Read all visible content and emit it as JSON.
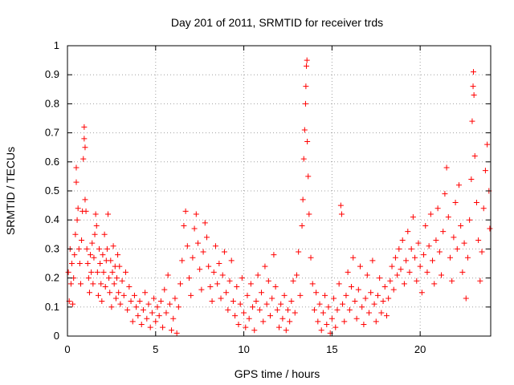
{
  "chart_data": {
    "type": "scatter",
    "title": "Day 201 of 2011, SRMTID for receiver trds",
    "xlabel": "GPS time / hours",
    "ylabel": "SRMTID / TECUs",
    "xlim": [
      0,
      24
    ],
    "ylim": [
      0,
      1
    ],
    "xticks": [
      0,
      5,
      10,
      15,
      20
    ],
    "xtick_labels": [
      "0",
      "5",
      "10",
      "15",
      "20"
    ],
    "yticks": [
      0,
      0.1,
      0.2,
      0.3,
      0.4,
      0.5,
      0.6,
      0.7,
      0.8,
      0.9,
      1
    ],
    "ytick_labels": [
      "0",
      "0.1",
      "0.2",
      "0.3",
      "0.4",
      "0.5",
      "0.6",
      "0.7",
      "0.8",
      "0.9",
      "1"
    ],
    "grid": true,
    "marker": "+",
    "color": "#ff0000",
    "series": [
      {
        "name": "SRMTID",
        "points": [
          [
            0.05,
            0.22
          ],
          [
            0.1,
            0.12
          ],
          [
            0.15,
            0.3
          ],
          [
            0.2,
            0.18
          ],
          [
            0.25,
            0.25
          ],
          [
            0.3,
            0.11
          ],
          [
            0.35,
            0.2
          ],
          [
            0.4,
            0.28
          ],
          [
            0.45,
            0.35
          ],
          [
            0.5,
            0.58
          ],
          [
            0.5,
            0.53
          ],
          [
            0.55,
            0.4
          ],
          [
            0.6,
            0.44
          ],
          [
            0.65,
            0.3
          ],
          [
            0.7,
            0.25
          ],
          [
            0.75,
            0.18
          ],
          [
            0.8,
            0.33
          ],
          [
            0.85,
            0.43
          ],
          [
            0.9,
            0.61
          ],
          [
            0.95,
            0.68
          ],
          [
            0.95,
            0.72
          ],
          [
            1.0,
            0.65
          ],
          [
            1.0,
            0.47
          ],
          [
            1.05,
            0.43
          ],
          [
            1.1,
            0.3
          ],
          [
            1.15,
            0.25
          ],
          [
            1.2,
            0.2
          ],
          [
            1.25,
            0.15
          ],
          [
            1.3,
            0.28
          ],
          [
            1.35,
            0.22
          ],
          [
            1.4,
            0.32
          ],
          [
            1.45,
            0.18
          ],
          [
            1.5,
            0.27
          ],
          [
            1.55,
            0.35
          ],
          [
            1.6,
            0.42
          ],
          [
            1.65,
            0.38
          ],
          [
            1.7,
            0.22
          ],
          [
            1.75,
            0.14
          ],
          [
            1.8,
            0.3
          ],
          [
            1.85,
            0.25
          ],
          [
            1.9,
            0.18
          ],
          [
            1.95,
            0.12
          ],
          [
            2.0,
            0.28
          ],
          [
            2.05,
            0.22
          ],
          [
            2.1,
            0.35
          ],
          [
            2.15,
            0.17
          ],
          [
            2.2,
            0.26
          ],
          [
            2.25,
            0.3
          ],
          [
            2.3,
            0.42
          ],
          [
            2.35,
            0.2
          ],
          [
            2.4,
            0.15
          ],
          [
            2.45,
            0.26
          ],
          [
            2.5,
            0.1
          ],
          [
            2.55,
            0.22
          ],
          [
            2.6,
            0.31
          ],
          [
            2.65,
            0.18
          ],
          [
            2.7,
            0.24
          ],
          [
            2.75,
            0.13
          ],
          [
            2.8,
            0.2
          ],
          [
            2.85,
            0.28
          ],
          [
            2.9,
            0.15
          ],
          [
            2.95,
            0.24
          ],
          [
            3.0,
            0.11
          ],
          [
            3.1,
            0.19
          ],
          [
            3.2,
            0.14
          ],
          [
            3.3,
            0.22
          ],
          [
            3.4,
            0.09
          ],
          [
            3.5,
            0.17
          ],
          [
            3.6,
            0.12
          ],
          [
            3.7,
            0.05
          ],
          [
            3.8,
            0.14
          ],
          [
            3.9,
            0.1
          ],
          [
            4.0,
            0.07
          ],
          [
            4.1,
            0.12
          ],
          [
            4.2,
            0.04
          ],
          [
            4.3,
            0.09
          ],
          [
            4.4,
            0.15
          ],
          [
            4.5,
            0.06
          ],
          [
            4.6,
            0.11
          ],
          [
            4.7,
            0.03
          ],
          [
            4.8,
            0.08
          ],
          [
            4.9,
            0.13
          ],
          [
            5.0,
            0.05
          ],
          [
            5.1,
            0.1
          ],
          [
            5.2,
            0.07
          ],
          [
            5.3,
            0.12
          ],
          [
            5.4,
            0.03
          ],
          [
            5.5,
            0.16
          ],
          [
            5.6,
            0.08
          ],
          [
            5.7,
            0.21
          ],
          [
            5.8,
            0.11
          ],
          [
            5.9,
            0.02
          ],
          [
            6.0,
            0.06
          ],
          [
            6.1,
            0.13
          ],
          [
            6.2,
            0.01
          ],
          [
            6.3,
            0.1
          ],
          [
            6.4,
            0.18
          ],
          [
            6.5,
            0.26
          ],
          [
            6.6,
            0.38
          ],
          [
            6.7,
            0.43
          ],
          [
            6.8,
            0.31
          ],
          [
            6.9,
            0.2
          ],
          [
            7.0,
            0.14
          ],
          [
            7.1,
            0.27
          ],
          [
            7.2,
            0.37
          ],
          [
            7.3,
            0.42
          ],
          [
            7.4,
            0.32
          ],
          [
            7.5,
            0.23
          ],
          [
            7.6,
            0.16
          ],
          [
            7.7,
            0.29
          ],
          [
            7.8,
            0.39
          ],
          [
            7.9,
            0.34
          ],
          [
            8.0,
            0.24
          ],
          [
            8.1,
            0.17
          ],
          [
            8.2,
            0.12
          ],
          [
            8.3,
            0.22
          ],
          [
            8.4,
            0.31
          ],
          [
            8.5,
            0.18
          ],
          [
            8.6,
            0.25
          ],
          [
            8.7,
            0.13
          ],
          [
            8.8,
            0.21
          ],
          [
            8.9,
            0.29
          ],
          [
            9.0,
            0.15
          ],
          [
            9.1,
            0.09
          ],
          [
            9.2,
            0.19
          ],
          [
            9.3,
            0.26
          ],
          [
            9.4,
            0.12
          ],
          [
            9.5,
            0.07
          ],
          [
            9.6,
            0.17
          ],
          [
            9.7,
            0.04
          ],
          [
            9.8,
            0.11
          ],
          [
            9.9,
            0.2
          ],
          [
            10.0,
            0.08
          ],
          [
            10.1,
            0.03
          ],
          [
            10.2,
            0.14
          ],
          [
            10.3,
            0.06
          ],
          [
            10.4,
            0.18
          ],
          [
            10.5,
            0.1
          ],
          [
            10.6,
            0.02
          ],
          [
            10.7,
            0.12
          ],
          [
            10.8,
            0.21
          ],
          [
            10.9,
            0.09
          ],
          [
            11.0,
            0.15
          ],
          [
            11.1,
            0.05
          ],
          [
            11.2,
            0.24
          ],
          [
            11.3,
            0.11
          ],
          [
            11.4,
            0.19
          ],
          [
            11.5,
            0.07
          ],
          [
            11.6,
            0.13
          ],
          [
            11.7,
            0.28
          ],
          [
            11.8,
            0.17
          ],
          [
            11.9,
            0.09
          ],
          [
            12.0,
            0.03
          ],
          [
            12.1,
            0.11
          ],
          [
            12.2,
            0.06
          ],
          [
            12.3,
            0.14
          ],
          [
            12.4,
            0.02
          ],
          [
            12.5,
            0.09
          ],
          [
            12.6,
            0.05
          ],
          [
            12.7,
            0.12
          ],
          [
            12.8,
            0.19
          ],
          [
            12.9,
            0.08
          ],
          [
            13.0,
            0.21
          ],
          [
            13.1,
            0.29
          ],
          [
            13.2,
            0.14
          ],
          [
            13.3,
            0.38
          ],
          [
            13.35,
            0.47
          ],
          [
            13.4,
            0.61
          ],
          [
            13.45,
            0.71
          ],
          [
            13.5,
            0.8
          ],
          [
            13.52,
            0.86
          ],
          [
            13.55,
            0.93
          ],
          [
            13.58,
            0.95
          ],
          [
            13.6,
            0.67
          ],
          [
            13.65,
            0.55
          ],
          [
            13.7,
            0.42
          ],
          [
            13.8,
            0.27
          ],
          [
            13.9,
            0.18
          ],
          [
            14.0,
            0.09
          ],
          [
            14.1,
            0.15
          ],
          [
            14.2,
            0.05
          ],
          [
            14.3,
            0.11
          ],
          [
            14.4,
            0.02
          ],
          [
            14.5,
            0.08
          ],
          [
            14.6,
            0.14
          ],
          [
            14.7,
            0.04
          ],
          [
            14.8,
            0.1
          ],
          [
            14.9,
            0.01
          ],
          [
            15.0,
            0.06
          ],
          [
            15.1,
            0.13
          ],
          [
            15.2,
            0.03
          ],
          [
            15.3,
            0.09
          ],
          [
            15.4,
            0.18
          ],
          [
            15.5,
            0.45
          ],
          [
            15.55,
            0.42
          ],
          [
            15.6,
            0.11
          ],
          [
            15.7,
            0.05
          ],
          [
            15.8,
            0.14
          ],
          [
            15.9,
            0.22
          ],
          [
            16.0,
            0.09
          ],
          [
            16.1,
            0.17
          ],
          [
            16.2,
            0.27
          ],
          [
            16.3,
            0.12
          ],
          [
            16.4,
            0.06
          ],
          [
            16.5,
            0.16
          ],
          [
            16.6,
            0.24
          ],
          [
            16.7,
            0.1
          ],
          [
            16.8,
            0.04
          ],
          [
            16.9,
            0.13
          ],
          [
            17.0,
            0.21
          ],
          [
            17.1,
            0.08
          ],
          [
            17.2,
            0.15
          ],
          [
            17.3,
            0.26
          ],
          [
            17.4,
            0.11
          ],
          [
            17.5,
            0.05
          ],
          [
            17.6,
            0.14
          ],
          [
            17.7,
            0.2
          ],
          [
            17.8,
            0.08
          ],
          [
            17.9,
            0.12
          ],
          [
            18.0,
            0.17
          ],
          [
            18.1,
            0.07
          ],
          [
            18.2,
            0.13
          ],
          [
            18.3,
            0.19
          ],
          [
            18.4,
            0.24
          ],
          [
            18.5,
            0.16
          ],
          [
            18.6,
            0.27
          ],
          [
            18.7,
            0.21
          ],
          [
            18.8,
            0.3
          ],
          [
            18.9,
            0.23
          ],
          [
            19.0,
            0.33
          ],
          [
            19.1,
            0.18
          ],
          [
            19.2,
            0.26
          ],
          [
            19.3,
            0.36
          ],
          [
            19.4,
            0.22
          ],
          [
            19.5,
            0.3
          ],
          [
            19.6,
            0.41
          ],
          [
            19.7,
            0.27
          ],
          [
            19.8,
            0.19
          ],
          [
            19.9,
            0.32
          ],
          [
            20.0,
            0.24
          ],
          [
            20.1,
            0.15
          ],
          [
            20.2,
            0.28
          ],
          [
            20.3,
            0.38
          ],
          [
            20.4,
            0.22
          ],
          [
            20.5,
            0.31
          ],
          [
            20.6,
            0.42
          ],
          [
            20.7,
            0.26
          ],
          [
            20.8,
            0.18
          ],
          [
            20.9,
            0.33
          ],
          [
            21.0,
            0.44
          ],
          [
            21.1,
            0.29
          ],
          [
            21.2,
            0.21
          ],
          [
            21.3,
            0.36
          ],
          [
            21.4,
            0.49
          ],
          [
            21.5,
            0.58
          ],
          [
            21.6,
            0.41
          ],
          [
            21.7,
            0.27
          ],
          [
            21.8,
            0.19
          ],
          [
            21.9,
            0.34
          ],
          [
            22.0,
            0.46
          ],
          [
            22.1,
            0.3
          ],
          [
            22.2,
            0.52
          ],
          [
            22.3,
            0.38
          ],
          [
            22.4,
            0.22
          ],
          [
            22.5,
            0.32
          ],
          [
            22.6,
            0.13
          ],
          [
            22.7,
            0.27
          ],
          [
            22.8,
            0.4
          ],
          [
            22.9,
            0.54
          ],
          [
            22.95,
            0.74
          ],
          [
            23.0,
            0.86
          ],
          [
            23.02,
            0.91
          ],
          [
            23.05,
            0.83
          ],
          [
            23.1,
            0.62
          ],
          [
            23.2,
            0.46
          ],
          [
            23.3,
            0.33
          ],
          [
            23.4,
            0.19
          ],
          [
            23.5,
            0.29
          ],
          [
            23.6,
            0.44
          ],
          [
            23.7,
            0.57
          ],
          [
            23.8,
            0.66
          ],
          [
            23.9,
            0.5
          ],
          [
            23.95,
            0.37
          ]
        ]
      }
    ]
  }
}
